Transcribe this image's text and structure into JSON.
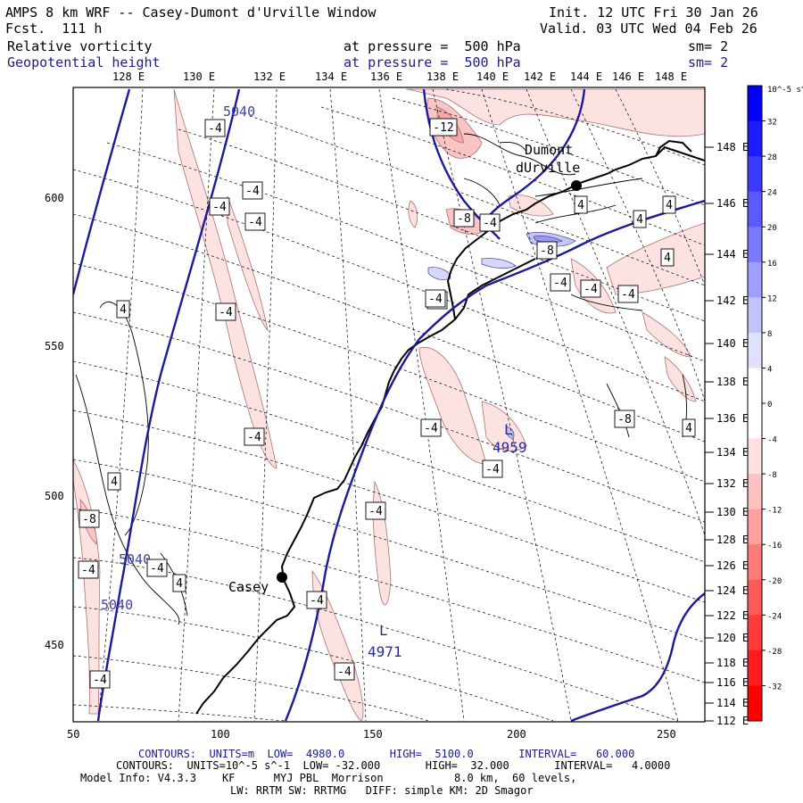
{
  "header": {
    "title": "AMPS 8 km WRF -- Casey-Dumont d'Urville Window",
    "init": "Init. 12 UTC Fri 30 Jan 26",
    "forecast": "Fcst.  111 h",
    "valid": "Valid. 03 UTC Wed 04 Feb 26",
    "field1": {
      "name": "Relative vorticity",
      "level": "at pressure =  500 hPa",
      "smoothing": "sm= 2"
    },
    "field2": {
      "name": "Geopotential height",
      "level": "at pressure =  500 hPa",
      "smoothing": "sm= 2"
    }
  },
  "map": {
    "top_longitude_labels": [
      "128 E",
      "130 E",
      "132 E",
      "134 E",
      "136 E",
      "138 E",
      "140 E",
      "142 E",
      "144 E",
      "146 E",
      "148 E"
    ],
    "right_latitude_labels": [
      "148 E",
      "146 E",
      "144 E",
      "142 E",
      "140 E",
      "138 E",
      "136 E",
      "134 E",
      "132 E",
      "130 E",
      "128 E",
      "126 E",
      "124 E",
      "122 E",
      "120 E",
      "118 E",
      "116 E",
      "114 E",
      "112 E"
    ],
    "x_ticks": [
      "50",
      "100",
      "150",
      "200",
      "250"
    ],
    "y_ticks": [
      "600",
      "550",
      "500",
      "450"
    ],
    "stations": [
      {
        "name": "Casey",
        "label": "Casey"
      },
      {
        "name": "Dumont d'Urville",
        "label1": "Dumont",
        "label2": "dUrville"
      }
    ],
    "height_labels": [
      "5040",
      "5040",
      "5040"
    ],
    "lows": [
      {
        "symbol": "L",
        "value": "4959"
      },
      {
        "symbol": "L",
        "value": "4971"
      }
    ],
    "vorticity_labels": [
      "-4",
      "-4",
      "-4",
      "-4",
      "4",
      "-4",
      "-4",
      "-4",
      "-4",
      "-4",
      "4",
      "-8",
      "-4",
      "-4",
      "4",
      "-4",
      "-4",
      "-4",
      "-12",
      "-8",
      "-8",
      "4",
      "4",
      "4",
      "-4",
      "-4",
      "-4",
      "-4",
      "4",
      "-8",
      "4",
      "-4",
      "-4"
    ],
    "colors": {
      "height_contour": "#1a1a9a",
      "coast": "#000000",
      "positive": "#3a3aff",
      "negative": "#ff6060"
    }
  },
  "colorbar": {
    "unit": "10^-5 s^-1",
    "labels": [
      "32",
      "28",
      "24",
      "20",
      "16",
      "12",
      "8",
      "4",
      "0",
      "-4",
      "-8",
      "-12",
      "-16",
      "-20",
      "-24",
      "-28",
      "-32"
    ],
    "colors": [
      "#0000ff",
      "#2727ff",
      "#4545ff",
      "#6262ff",
      "#8a8aff",
      "#b3b3ff",
      "#d6d6ff",
      "#ffffff",
      "#ffffff",
      "#ffe0e0",
      "#ffc2c2",
      "#ff9f9f",
      "#ff7a7a",
      "#ff5a5a",
      "#ff3a3a",
      "#ff1c1c",
      "#ff0000"
    ]
  },
  "footer": {
    "line1": "CONTOURS:  UNITS=m  LOW=  4980.0       HIGH=  5100.0       INTERVAL=   60.000",
    "line2": "CONTOURS:  UNITS=10^-5 s^-1  LOW= -32.000       HIGH=  32.000       INTERVAL=   4.0000",
    "line3": "Model Info: V4.3.3    KF      MYJ PBL  Morrison           8.0 km,  60 levels,",
    "line4": "LW: RRTM SW: RRTMG   DIFF: simple KM: 2D Smagor"
  }
}
